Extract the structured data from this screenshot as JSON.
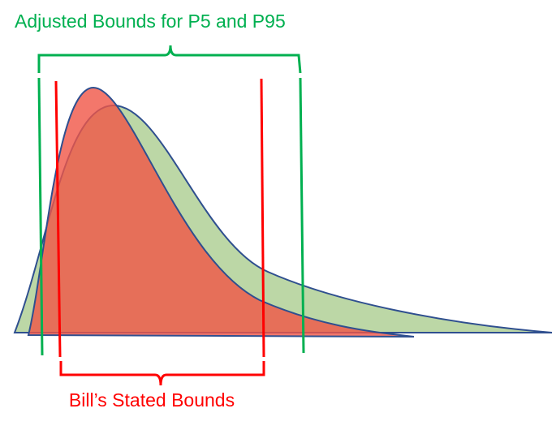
{
  "annotations": {
    "adjusted_bounds": {
      "label": "Adjusted Bounds for P5 and P95"
    },
    "stated_bounds": {
      "label": "Bill’s Stated Bounds"
    }
  }
}
